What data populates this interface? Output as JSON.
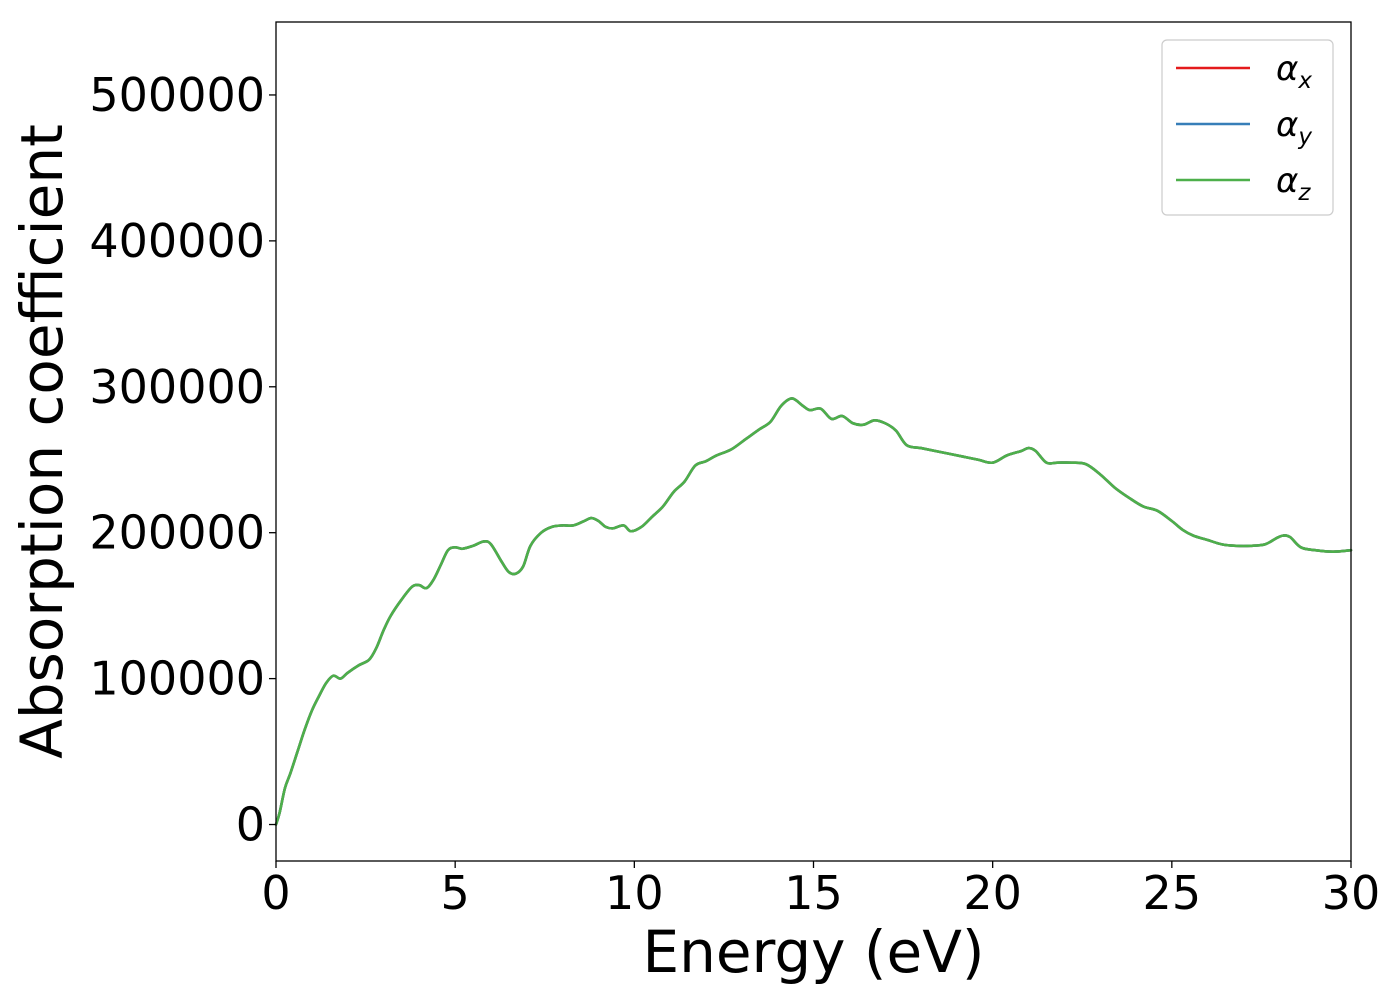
{
  "chart_data": {
    "type": "line",
    "title": "",
    "xlabel": "Energy (eV)",
    "ylabel": "Absorption coefficient",
    "xlim": [
      0,
      30
    ],
    "ylim": [
      -25000,
      550000
    ],
    "x_ticks": [
      0,
      5,
      10,
      15,
      20,
      25,
      30
    ],
    "x_tick_labels": [
      "0",
      "5",
      "10",
      "15",
      "20",
      "25",
      "30"
    ],
    "y_ticks": [
      0,
      100000,
      200000,
      300000,
      400000,
      500000
    ],
    "y_tick_labels": [
      "0",
      "100000",
      "200000",
      "300000",
      "400000",
      "500000"
    ],
    "grid": false,
    "legend_position": "top-right",
    "legend": [
      {
        "symbol": "α",
        "sub": "x",
        "color": "#e41a1c"
      },
      {
        "symbol": "α",
        "sub": "y",
        "color": "#377eb8"
      },
      {
        "symbol": "α",
        "sub": "z",
        "color": "#4daf4a"
      }
    ],
    "x": [
      0,
      0.1,
      0.25,
      0.4,
      0.6,
      0.8,
      1.0,
      1.2,
      1.4,
      1.6,
      1.8,
      2.0,
      2.3,
      2.6,
      2.8,
      3.0,
      3.2,
      3.5,
      3.8,
      4.0,
      4.2,
      4.4,
      4.6,
      4.8,
      5.0,
      5.2,
      5.5,
      5.8,
      6.0,
      6.3,
      6.5,
      6.7,
      6.9,
      7.1,
      7.4,
      7.7,
      8.0,
      8.3,
      8.6,
      8.8,
      9.0,
      9.2,
      9.4,
      9.7,
      9.9,
      10.2,
      10.5,
      10.8,
      11.1,
      11.4,
      11.7,
      12.0,
      12.3,
      12.7,
      13.1,
      13.5,
      13.8,
      14.1,
      14.4,
      14.7,
      14.9,
      15.2,
      15.5,
      15.8,
      16.1,
      16.4,
      16.7,
      17.0,
      17.3,
      17.6,
      18.0,
      18.4,
      18.8,
      19.2,
      19.6,
      20.0,
      20.4,
      20.8,
      21.0,
      21.2,
      21.5,
      21.8,
      22.2,
      22.6,
      23.0,
      23.4,
      23.8,
      24.2,
      24.6,
      25.0,
      25.3,
      25.6,
      26.0,
      26.4,
      26.8,
      27.2,
      27.6,
      27.9,
      28.1,
      28.3,
      28.6,
      29.0,
      29.5,
      30.0
    ],
    "series": [
      {
        "name": "αx",
        "color": "#e41a1c",
        "values": [
          0,
          8000,
          25000,
          35000,
          50000,
          65000,
          78000,
          88000,
          97000,
          102000,
          100000,
          104000,
          109000,
          113000,
          121000,
          133000,
          143000,
          154000,
          163000,
          164000,
          162000,
          168000,
          178000,
          188000,
          190000,
          189000,
          191000,
          194000,
          192000,
          180000,
          173000,
          172000,
          177000,
          191000,
          200000,
          204000,
          205000,
          205000,
          208000,
          210000,
          208000,
          204000,
          203000,
          205000,
          201000,
          204000,
          211000,
          218000,
          228000,
          235000,
          246000,
          249000,
          253000,
          257000,
          264000,
          271000,
          276000,
          287000,
          292000,
          287000,
          284000,
          285000,
          278000,
          280000,
          275000,
          274000,
          277000,
          275000,
          270000,
          260000,
          258000,
          256000,
          254000,
          252000,
          250000,
          248000,
          253000,
          256000,
          258000,
          256000,
          248000,
          248000,
          248000,
          247000,
          240000,
          231000,
          224000,
          218000,
          215000,
          208000,
          202000,
          198000,
          195000,
          192000,
          191000,
          191000,
          192000,
          196000,
          198000,
          197000,
          190000,
          188000,
          187000,
          188000
        ]
      },
      {
        "name": "αy",
        "color": "#377eb8",
        "values": [
          0,
          8000,
          25000,
          35000,
          50000,
          65000,
          78000,
          88000,
          97000,
          102000,
          100000,
          104000,
          109000,
          113000,
          121000,
          133000,
          143000,
          154000,
          163000,
          164000,
          162000,
          168000,
          178000,
          188000,
          190000,
          189000,
          191000,
          194000,
          192000,
          180000,
          173000,
          172000,
          177000,
          191000,
          200000,
          204000,
          205000,
          205000,
          208000,
          210000,
          208000,
          204000,
          203000,
          205000,
          201000,
          204000,
          211000,
          218000,
          228000,
          235000,
          246000,
          249000,
          253000,
          257000,
          264000,
          271000,
          276000,
          287000,
          292000,
          287000,
          284000,
          285000,
          278000,
          280000,
          275000,
          274000,
          277000,
          275000,
          270000,
          260000,
          258000,
          256000,
          254000,
          252000,
          250000,
          248000,
          253000,
          256000,
          258000,
          256000,
          248000,
          248000,
          248000,
          247000,
          240000,
          231000,
          224000,
          218000,
          215000,
          208000,
          202000,
          198000,
          195000,
          192000,
          191000,
          191000,
          192000,
          196000,
          198000,
          197000,
          190000,
          188000,
          187000,
          188000
        ]
      },
      {
        "name": "αz",
        "color": "#4daf4a",
        "values": [
          0,
          8000,
          25000,
          35000,
          50000,
          65000,
          78000,
          88000,
          97000,
          102000,
          100000,
          104000,
          109000,
          113000,
          121000,
          133000,
          143000,
          154000,
          163000,
          164000,
          162000,
          168000,
          178000,
          188000,
          190000,
          189000,
          191000,
          194000,
          192000,
          180000,
          173000,
          172000,
          177000,
          191000,
          200000,
          204000,
          205000,
          205000,
          208000,
          210000,
          208000,
          204000,
          203000,
          205000,
          201000,
          204000,
          211000,
          218000,
          228000,
          235000,
          246000,
          249000,
          253000,
          257000,
          264000,
          271000,
          276000,
          287000,
          292000,
          287000,
          284000,
          285000,
          278000,
          280000,
          275000,
          274000,
          277000,
          275000,
          270000,
          260000,
          258000,
          256000,
          254000,
          252000,
          250000,
          248000,
          253000,
          256000,
          258000,
          256000,
          248000,
          248000,
          248000,
          247000,
          240000,
          231000,
          224000,
          218000,
          215000,
          208000,
          202000,
          198000,
          195000,
          192000,
          191000,
          191000,
          192000,
          196000,
          198000,
          197000,
          190000,
          188000,
          187000,
          188000
        ]
      }
    ]
  }
}
